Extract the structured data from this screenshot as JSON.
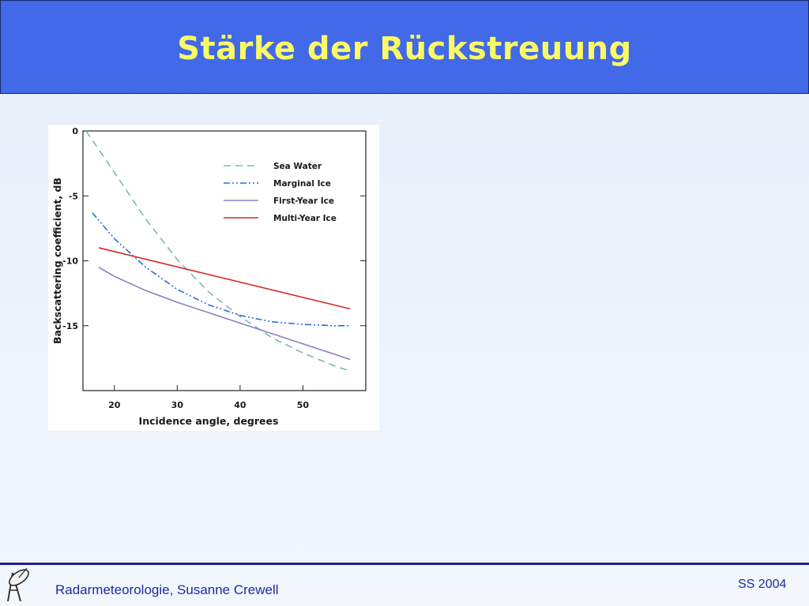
{
  "slide": {
    "title": "Stärke der Rückstreuung",
    "footer_left": "Radarmeteorologie, Susanne Crewell",
    "footer_right": "SS 2004",
    "colors": {
      "header_bg": "#4169e8",
      "title": "#fafa66",
      "footer_text": "#1d2a9c",
      "footer_line": "#1d1d9a"
    },
    "logo_icon": "radar-dish-icon"
  },
  "chart_data": {
    "type": "line",
    "title": "",
    "xlabel": "Incidence  angle,  degrees",
    "ylabel": "Backscattering coefficient, dB",
    "xlim": [
      15,
      60
    ],
    "ylim": [
      -20,
      0
    ],
    "xticks": [
      "20",
      "30",
      "40",
      "50"
    ],
    "yticks": [
      "0",
      "-5",
      "-10",
      "-15"
    ],
    "grid": false,
    "legend_position": "top-right",
    "series": [
      {
        "name": "Sea Water",
        "color": "#7fb8a8",
        "style": "dashed",
        "x": [
          15.5,
          20,
          25,
          30,
          35,
          40,
          45,
          50,
          55,
          57.5
        ],
        "y": [
          0,
          -3.2,
          -6.8,
          -9.9,
          -12.4,
          -14.3,
          -15.9,
          -17.1,
          -18.1,
          -18.5
        ]
      },
      {
        "name": "Marginal Ice",
        "color": "#2a6fd6",
        "style": "dashdotdot",
        "x": [
          16.5,
          20,
          25,
          30,
          35,
          40,
          45,
          50,
          55,
          57.5
        ],
        "y": [
          -6.3,
          -8.3,
          -10.5,
          -12.2,
          -13.4,
          -14.2,
          -14.7,
          -14.9,
          -15.0,
          -15.0
        ]
      },
      {
        "name": "First-Year Ice",
        "color": "#8a7fc0",
        "style": "solid",
        "x": [
          17.5,
          20,
          25,
          30,
          35,
          40,
          45,
          50,
          55,
          57.5
        ],
        "y": [
          -10.5,
          -11.2,
          -12.3,
          -13.2,
          -14.0,
          -14.8,
          -15.6,
          -16.4,
          -17.2,
          -17.6
        ]
      },
      {
        "name": "Multi-Year Ice",
        "color": "#d42a2a",
        "style": "solid",
        "x": [
          17.5,
          57.5
        ],
        "y": [
          -9.0,
          -13.7
        ]
      }
    ]
  }
}
